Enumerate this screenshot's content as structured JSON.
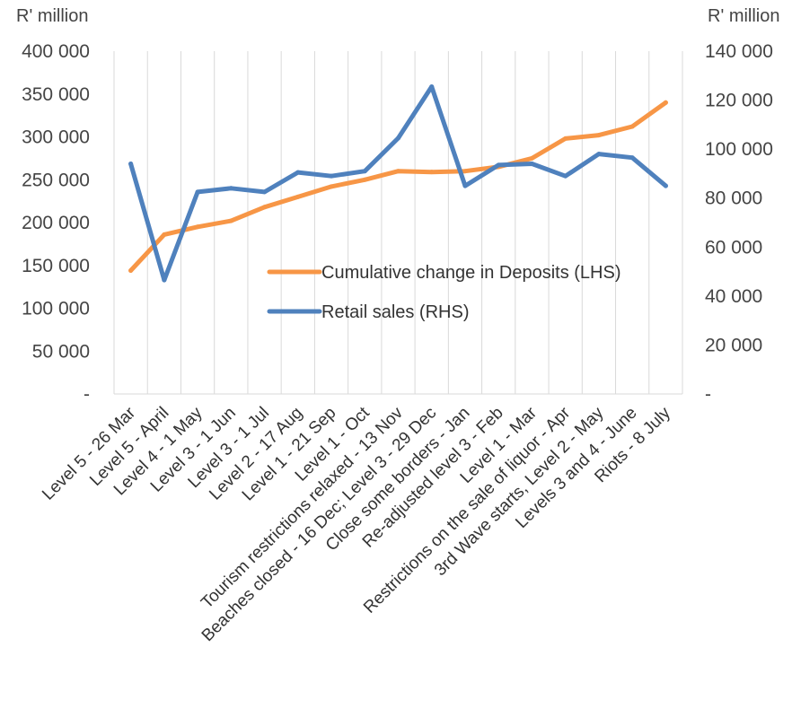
{
  "chart_data": {
    "type": "line",
    "title": "",
    "ylabel_left": "R' million",
    "ylabel_right": "R' million",
    "categories": [
      "Level 5 - 26 Mar",
      "Level 5 - April",
      "Level 4 - 1 May",
      "Level 3 - 1 Jun",
      "Level 3 - 1 Jul",
      "Level 2 - 17 Aug",
      "Level 1 - 21 Sep",
      "Level 1 - Oct",
      "Tourism restrictions relaxed - 13 Nov",
      "Beaches closed - 16 Dec; Level 3 - 29 Dec",
      "Close some borders - Jan",
      "Re-adjusted level 3 - Feb",
      "Level 1 - Mar",
      "Restrictions on the sale of liquor - Apr",
      "3rd Wave starts, Level 2 - May",
      "Levels 3 and 4 - June",
      "Riots - 8 July"
    ],
    "y_left": {
      "min": 0,
      "max": 400000,
      "ticks": [
        {
          "value": 400000,
          "label": "400 000"
        },
        {
          "value": 350000,
          "label": "350 000"
        },
        {
          "value": 300000,
          "label": "300 000"
        },
        {
          "value": 250000,
          "label": "250 000"
        },
        {
          "value": 200000,
          "label": "200 000"
        },
        {
          "value": 150000,
          "label": "150 000"
        },
        {
          "value": 100000,
          "label": "100 000"
        },
        {
          "value": 50000,
          "label": "50 000"
        },
        {
          "value": 0,
          "label": "-"
        }
      ]
    },
    "y_right": {
      "min": 0,
      "max": 140000,
      "ticks": [
        {
          "value": 140000,
          "label": "140 000"
        },
        {
          "value": 120000,
          "label": "120 000"
        },
        {
          "value": 100000,
          "label": "100 000"
        },
        {
          "value": 80000,
          "label": "80 000"
        },
        {
          "value": 60000,
          "label": "60 000"
        },
        {
          "value": 40000,
          "label": "40 000"
        },
        {
          "value": 20000,
          "label": "20 000"
        },
        {
          "value": 0,
          "label": "-"
        }
      ]
    },
    "grid": "vertical",
    "legend_position": "center-right",
    "series": [
      {
        "name": "Cumulative change in Deposits (LHS)",
        "axis": "left",
        "color": "#F79646",
        "values": [
          144000,
          186000,
          195000,
          202000,
          218000,
          230000,
          242000,
          250000,
          260000,
          259000,
          260000,
          265000,
          275000,
          298000,
          302000,
          312000,
          340000
        ]
      },
      {
        "name": "Retail sales (RHS)",
        "axis": "right",
        "color": "#4F81BD",
        "values": [
          94000,
          46500,
          82500,
          84000,
          82500,
          90500,
          89000,
          91000,
          104500,
          125500,
          85000,
          93500,
          94000,
          89000,
          98000,
          96500,
          85000
        ]
      }
    ]
  }
}
